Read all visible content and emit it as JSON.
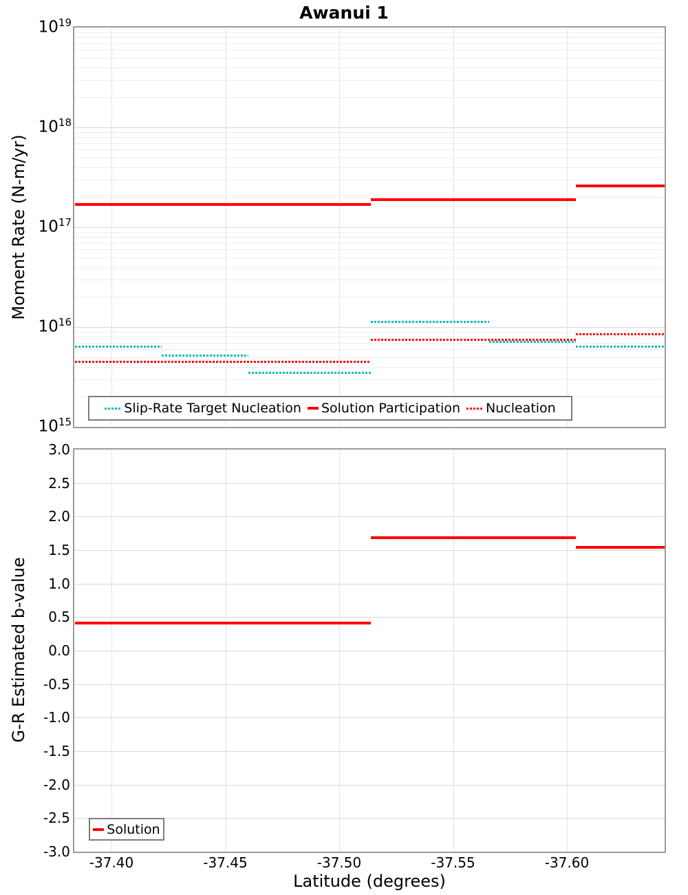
{
  "title": "Awanui 1",
  "chart_data": [
    {
      "type": "line",
      "title": "Awanui 1",
      "ylabel": "Moment Rate (N-m/yr)",
      "yscale": "log",
      "ylim": [
        1000000000000000.0,
        1e+19
      ],
      "xlim": [
        -37.3837,
        -37.6429
      ],
      "grid": true,
      "legend_position": "inside-bottom-left",
      "x_ticks": {
        "values": [
          -37.4,
          -37.45,
          -37.5,
          -37.55,
          -37.6
        ],
        "labels": [
          "-37.40",
          "-37.45",
          "-37.50",
          "-37.55",
          "-37.60"
        ]
      },
      "y_ticks": [
        {
          "value": 1e+19,
          "base": "10",
          "exp": "19"
        },
        {
          "value": 1e+18,
          "base": "10",
          "exp": "18"
        },
        {
          "value": 1e+17,
          "base": "10",
          "exp": "17"
        },
        {
          "value": 1e+16,
          "base": "10",
          "exp": "16"
        },
        {
          "value": 1000000000000000.0,
          "base": "10",
          "exp": "15"
        }
      ],
      "series": [
        {
          "name": "Slip-Rate Target Nucleation",
          "color": "#00bfbf",
          "style": "dotted",
          "segments": [
            {
              "x": [
                -37.384,
                -37.422
              ],
              "y": 6400000000000000.0
            },
            {
              "x": [
                -37.422,
                -37.46
              ],
              "y": 5200000000000000.0
            },
            {
              "x": [
                -37.46,
                -37.514
              ],
              "y": 3500000000000000.0
            },
            {
              "x": [
                -37.514,
                -37.566
              ],
              "y": 1.12e+16
            },
            {
              "x": [
                -37.566,
                -37.604
              ],
              "y": 7100000000000000.0
            },
            {
              "x": [
                -37.604,
                -37.643
              ],
              "y": 6400000000000000.0
            }
          ]
        },
        {
          "name": "Solution Participation",
          "color": "#ff0000",
          "style": "solid",
          "segments": [
            {
              "x": [
                -37.384,
                -37.514
              ],
              "y": 1.7e+17
            },
            {
              "x": [
                -37.514,
                -37.604
              ],
              "y": 1.9e+17
            },
            {
              "x": [
                -37.604,
                -37.643
              ],
              "y": 2.6e+17
            }
          ]
        },
        {
          "name": "Nucleation",
          "color": "#ff0000",
          "style": "dotted",
          "segments": [
            {
              "x": [
                -37.384,
                -37.514
              ],
              "y": 4500000000000000.0
            },
            {
              "x": [
                -37.514,
                -37.604
              ],
              "y": 7500000000000000.0
            },
            {
              "x": [
                -37.604,
                -37.643
              ],
              "y": 8500000000000000.0
            }
          ]
        }
      ]
    },
    {
      "type": "line",
      "ylabel": "G-R Estimated b-value",
      "xlabel": "Latitude (degrees)",
      "yscale": "linear",
      "ylim": [
        -3.0,
        3.0
      ],
      "xlim": [
        -37.3837,
        -37.6429
      ],
      "grid": true,
      "legend_position": "inside-bottom-left",
      "y_ticks": [
        {
          "value": 3.0,
          "label": "3.0"
        },
        {
          "value": 2.5,
          "label": "2.5"
        },
        {
          "value": 2.0,
          "label": "2.0"
        },
        {
          "value": 1.5,
          "label": "1.5"
        },
        {
          "value": 1.0,
          "label": "1.0"
        },
        {
          "value": 0.5,
          "label": "0.5"
        },
        {
          "value": 0.0,
          "label": "0.0"
        },
        {
          "value": -0.5,
          "label": "-0.5"
        },
        {
          "value": -1.0,
          "label": "-1.0"
        },
        {
          "value": -1.5,
          "label": "-1.5"
        },
        {
          "value": -2.0,
          "label": "-2.0"
        },
        {
          "value": -2.5,
          "label": "-2.5"
        },
        {
          "value": -3.0,
          "label": "-3.0"
        }
      ],
      "series": [
        {
          "name": "Solution",
          "color": "#ff0000",
          "style": "solid",
          "segments": [
            {
              "x": [
                -37.384,
                -37.514
              ],
              "y": 0.41
            },
            {
              "x": [
                -37.514,
                -37.604
              ],
              "y": 1.69
            },
            {
              "x": [
                -37.604,
                -37.643
              ],
              "y": 1.54
            }
          ]
        }
      ]
    }
  ]
}
